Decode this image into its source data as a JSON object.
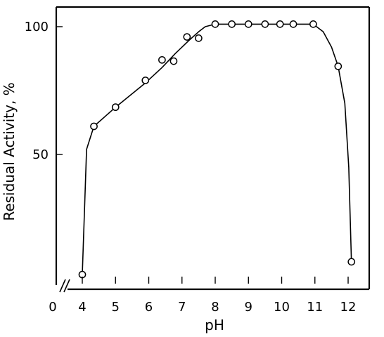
{
  "chart_data": {
    "type": "line",
    "xlabel": "pH",
    "ylabel": "Residual Activity, %",
    "x_ticks": [
      0,
      4,
      5,
      6,
      7,
      8,
      9,
      10,
      11,
      12
    ],
    "y_ticks": [
      50,
      100
    ],
    "axis_break": "x-axis between 0 and 4",
    "grid": false,
    "xlim": [
      4,
      12.3
    ],
    "ylim": [
      0,
      108
    ],
    "series": [
      {
        "points": [
          {
            "x": 4.0,
            "y": 3
          },
          {
            "x": 4.35,
            "y": 61
          },
          {
            "x": 5.0,
            "y": 68.5
          },
          {
            "x": 5.9,
            "y": 79
          },
          {
            "x": 6.4,
            "y": 87
          },
          {
            "x": 6.75,
            "y": 86.5
          },
          {
            "x": 7.15,
            "y": 96
          },
          {
            "x": 7.5,
            "y": 95.5
          },
          {
            "x": 8.0,
            "y": 101
          },
          {
            "x": 8.5,
            "y": 101
          },
          {
            "x": 9.0,
            "y": 101
          },
          {
            "x": 9.5,
            "y": 101
          },
          {
            "x": 9.95,
            "y": 101
          },
          {
            "x": 10.35,
            "y": 101
          },
          {
            "x": 10.95,
            "y": 101
          },
          {
            "x": 11.7,
            "y": 84.5
          },
          {
            "x": 12.1,
            "y": 8
          }
        ],
        "curve": [
          [
            4.0,
            3
          ],
          [
            4.13,
            52
          ],
          [
            4.35,
            61
          ],
          [
            5.0,
            68.5
          ],
          [
            5.9,
            78
          ],
          [
            6.4,
            84
          ],
          [
            6.8,
            89.5
          ],
          [
            7.2,
            94.5
          ],
          [
            7.5,
            98
          ],
          [
            7.7,
            100
          ],
          [
            8.0,
            101
          ],
          [
            10.95,
            101
          ],
          [
            11.25,
            98
          ],
          [
            11.5,
            92
          ],
          [
            11.7,
            84.5
          ],
          [
            11.9,
            70
          ],
          [
            12.02,
            45
          ],
          [
            12.1,
            8
          ]
        ]
      }
    ]
  }
}
